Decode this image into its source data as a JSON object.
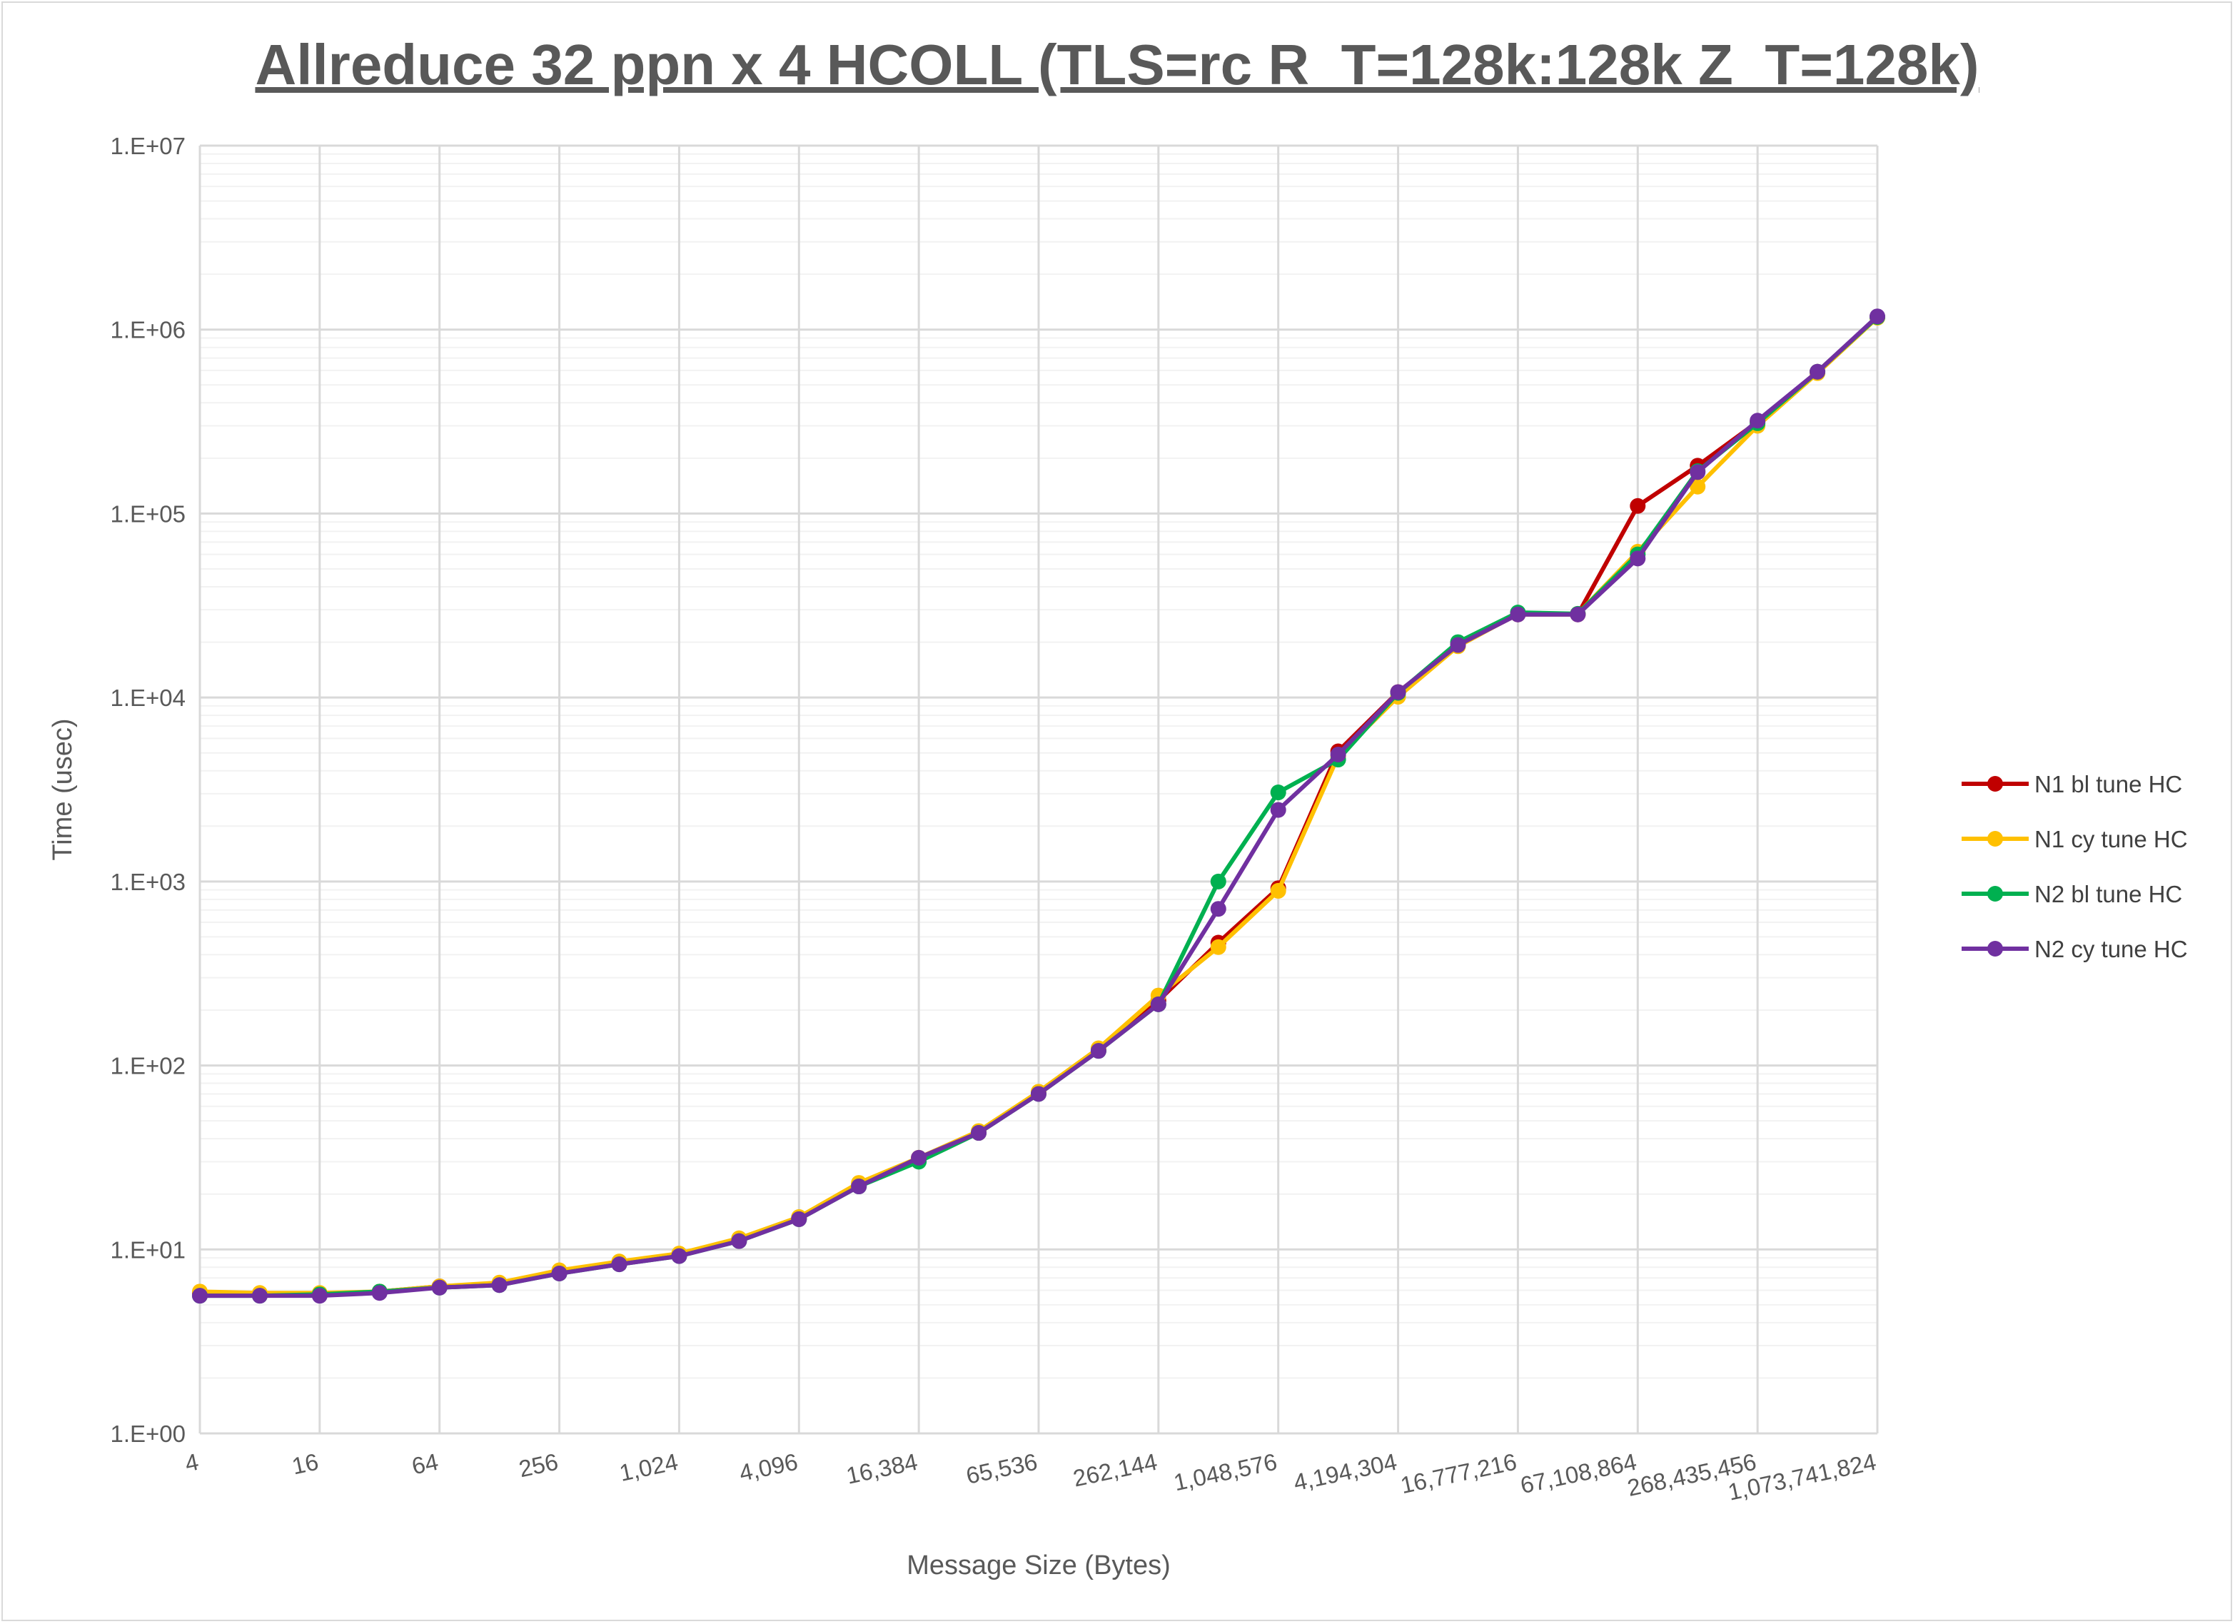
{
  "chart_data": {
    "type": "line",
    "title": "Allreduce 32 ppn x 4 HCOLL (TLS=rc R_T=128k:128k Z_T=128k)",
    "xlabel": "Message Size (Bytes)",
    "ylabel": "Time (usec)",
    "yscale": "log",
    "ylim": [
      1,
      10000000
    ],
    "y_tick_labels": [
      "1.E+00",
      "1.E+01",
      "1.E+02",
      "1.E+03",
      "1.E+04",
      "1.E+05",
      "1.E+06",
      "1.E+07"
    ],
    "x": [
      4,
      8,
      16,
      32,
      64,
      128,
      256,
      512,
      1024,
      2048,
      4096,
      8192,
      16384,
      32768,
      65536,
      131072,
      262144,
      524288,
      1048576,
      2097152,
      4194304,
      8388608,
      16777216,
      33554432,
      67108864,
      134217728,
      268435456,
      536870912,
      1073741824
    ],
    "x_tick_labels": [
      "4",
      "16",
      "64",
      "256",
      "1,024",
      "4,096",
      "16,384",
      "65,536",
      "262,144",
      "1,048,576",
      "4,194,304",
      "16,777,216",
      "67,108,864",
      "268,435,456",
      "1,073,741,824"
    ],
    "legend_position": "right",
    "grid": true,
    "series": [
      {
        "name": "N1 bl tune HC",
        "color": "#c00000",
        "values": [
          5.8,
          5.7,
          5.7,
          5.9,
          6.3,
          6.5,
          7.6,
          8.5,
          9.4,
          11.3,
          14.8,
          22.5,
          31.5,
          43,
          71,
          121,
          225,
          465,
          920,
          5100,
          10700,
          19300,
          28300,
          28300,
          110000,
          182000,
          315000,
          590000,
          1170000
        ]
      },
      {
        "name": "N1 cy tune HC",
        "color": "#ffc000",
        "values": [
          5.9,
          5.8,
          5.8,
          5.9,
          6.3,
          6.6,
          7.7,
          8.6,
          9.5,
          11.5,
          15.0,
          23,
          31.5,
          44,
          72,
          124,
          240,
          440,
          890,
          4800,
          10100,
          19000,
          28500,
          28500,
          62000,
          140000,
          300000,
          580000,
          1160000
        ]
      },
      {
        "name": "N2 bl tune HC",
        "color": "#00b050",
        "values": [
          5.6,
          5.6,
          5.7,
          5.9,
          6.2,
          6.4,
          7.4,
          8.3,
          9.2,
          11.1,
          14.6,
          22,
          30,
          43,
          70,
          120,
          215,
          1000,
          3050,
          4600,
          10600,
          20000,
          29000,
          28500,
          60000,
          170000,
          310000,
          590000,
          1170000
        ]
      },
      {
        "name": "N2 cy tune HC",
        "color": "#7030a0",
        "values": [
          5.6,
          5.6,
          5.6,
          5.8,
          6.2,
          6.4,
          7.4,
          8.3,
          9.2,
          11.1,
          14.6,
          22,
          31.5,
          43,
          70,
          120,
          215,
          710,
          2450,
          4900,
          10700,
          19300,
          28300,
          28300,
          57000,
          168000,
          320000,
          590000,
          1180000
        ]
      }
    ]
  }
}
